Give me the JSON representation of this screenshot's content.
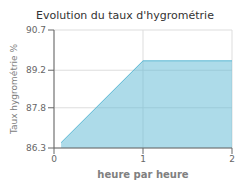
{
  "chart_data": {
    "type": "area",
    "title": "Evolution du taux d'hygrométrie",
    "x_label": "heure par heure",
    "y_label": "Taux hygrométrie %",
    "x": [
      0.08,
      1.0,
      2.0
    ],
    "values": [
      86.5,
      89.55,
      89.55
    ],
    "color": "#5bb8d4",
    "xlim": [
      0,
      2
    ],
    "ylim": [
      86.3,
      90.7
    ],
    "xticks": [
      0,
      1,
      2
    ],
    "yticks": [
      86.3,
      87.8,
      89.2,
      90.7
    ],
    "grid": true
  }
}
